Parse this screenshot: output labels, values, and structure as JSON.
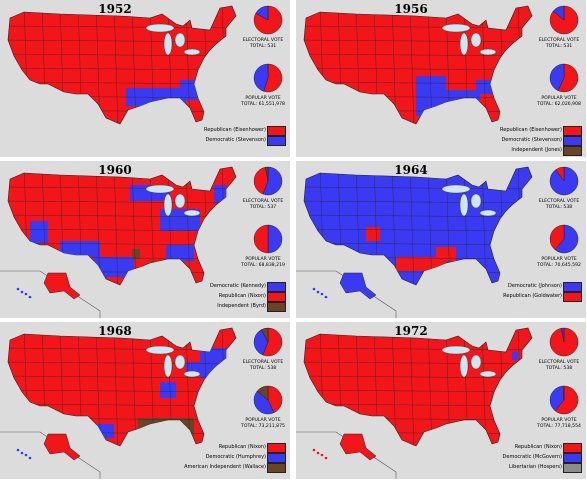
{
  "colors": {
    "republican": "#f2161b",
    "democratic": "#3a3af2",
    "independent": "#6b4326",
    "other": "#8c8c8c",
    "water": "#cfe6f0"
  },
  "maps": [
    {
      "year": "1952",
      "electoral_label": "ELECTORAL VOTE",
      "electoral_total": "TOTAL: 531",
      "popular_label": "POPULAR VOTE",
      "popular_total": "TOTAL: 61,551,978",
      "electoral_pie": [
        {
          "party": "republican",
          "share": 0.83
        },
        {
          "party": "democratic",
          "share": 0.17
        }
      ],
      "popular_pie": [
        {
          "party": "republican",
          "share": 0.55
        },
        {
          "party": "democratic",
          "share": 0.45
        }
      ],
      "legend": [
        {
          "label": "Republican (Eisenhower)",
          "party": "republican"
        },
        {
          "label": "Democratic (Stevenson)",
          "party": "democratic"
        }
      ]
    },
    {
      "year": "1956",
      "electoral_label": "ELECTORAL VOTE",
      "electoral_total": "TOTAL: 531",
      "popular_label": "POPULAR VOTE",
      "popular_total": "TOTAL: 62,026,908",
      "electoral_pie": [
        {
          "party": "republican",
          "share": 0.86
        },
        {
          "party": "democratic",
          "share": 0.14
        }
      ],
      "popular_pie": [
        {
          "party": "republican",
          "share": 0.57
        },
        {
          "party": "democratic",
          "share": 0.43
        }
      ],
      "legend": [
        {
          "label": "Republican (Eisenhower)",
          "party": "republican"
        },
        {
          "label": "Democratic (Stevenson)",
          "party": "democratic"
        },
        {
          "label": "Independent (Jones)",
          "party": "independent"
        }
      ]
    },
    {
      "year": "1960",
      "electoral_label": "ELECTORAL VOTE",
      "electoral_total": "TOTAL: 537",
      "popular_label": "POPULAR VOTE",
      "popular_total": "TOTAL: 68,838,219",
      "electoral_pie": [
        {
          "party": "democratic",
          "share": 0.56
        },
        {
          "party": "republican",
          "share": 0.41
        },
        {
          "party": "independent",
          "share": 0.03
        }
      ],
      "popular_pie": [
        {
          "party": "democratic",
          "share": 0.5
        },
        {
          "party": "republican",
          "share": 0.5
        }
      ],
      "legend": [
        {
          "label": "Democratic (Kennedy)",
          "party": "democratic"
        },
        {
          "label": "Republican (Nixon)",
          "party": "republican"
        },
        {
          "label": "Independent (Byrd)",
          "party": "independent"
        }
      ]
    },
    {
      "year": "1964",
      "electoral_label": "ELECTORAL VOTE",
      "electoral_total": "TOTAL: 538",
      "popular_label": "POPULAR VOTE",
      "popular_total": "TOTAL: 70,645,592",
      "electoral_pie": [
        {
          "party": "democratic",
          "share": 0.9
        },
        {
          "party": "republican",
          "share": 0.1
        }
      ],
      "popular_pie": [
        {
          "party": "democratic",
          "share": 0.61
        },
        {
          "party": "republican",
          "share": 0.39
        }
      ],
      "legend": [
        {
          "label": "Democratic (Johnson)",
          "party": "democratic"
        },
        {
          "label": "Republican (Goldwater)",
          "party": "republican"
        }
      ]
    },
    {
      "year": "1968",
      "electoral_label": "ELECTORAL VOTE",
      "electoral_total": "TOTAL: 538",
      "popular_label": "POPULAR VOTE",
      "popular_total": "TOTAL: 73,211,875",
      "electoral_pie": [
        {
          "party": "republican",
          "share": 0.56
        },
        {
          "party": "democratic",
          "share": 0.36
        },
        {
          "party": "independent",
          "share": 0.08
        }
      ],
      "popular_pie": [
        {
          "party": "republican",
          "share": 0.43
        },
        {
          "party": "democratic",
          "share": 0.43
        },
        {
          "party": "independent",
          "share": 0.14
        }
      ],
      "legend": [
        {
          "label": "Republican (Nixon)",
          "party": "republican"
        },
        {
          "label": "Democratic (Humphrey)",
          "party": "democratic"
        },
        {
          "label": "American Independent (Wallace)",
          "party": "independent"
        }
      ]
    },
    {
      "year": "1972",
      "electoral_label": "ELECTORAL VOTE",
      "electoral_total": "TOTAL: 538",
      "popular_label": "POPULAR VOTE",
      "popular_total": "TOTAL: 77,718,554",
      "electoral_pie": [
        {
          "party": "republican",
          "share": 0.97
        },
        {
          "party": "democratic",
          "share": 0.03
        }
      ],
      "popular_pie": [
        {
          "party": "republican",
          "share": 0.61
        },
        {
          "party": "democratic",
          "share": 0.38
        },
        {
          "party": "other",
          "share": 0.01
        }
      ],
      "legend": [
        {
          "label": "Republican (Nixon)",
          "party": "republican"
        },
        {
          "label": "Democratic (McGovern)",
          "party": "democratic"
        },
        {
          "label": "Libertarian (Hospers)",
          "party": "other"
        }
      ]
    }
  ]
}
